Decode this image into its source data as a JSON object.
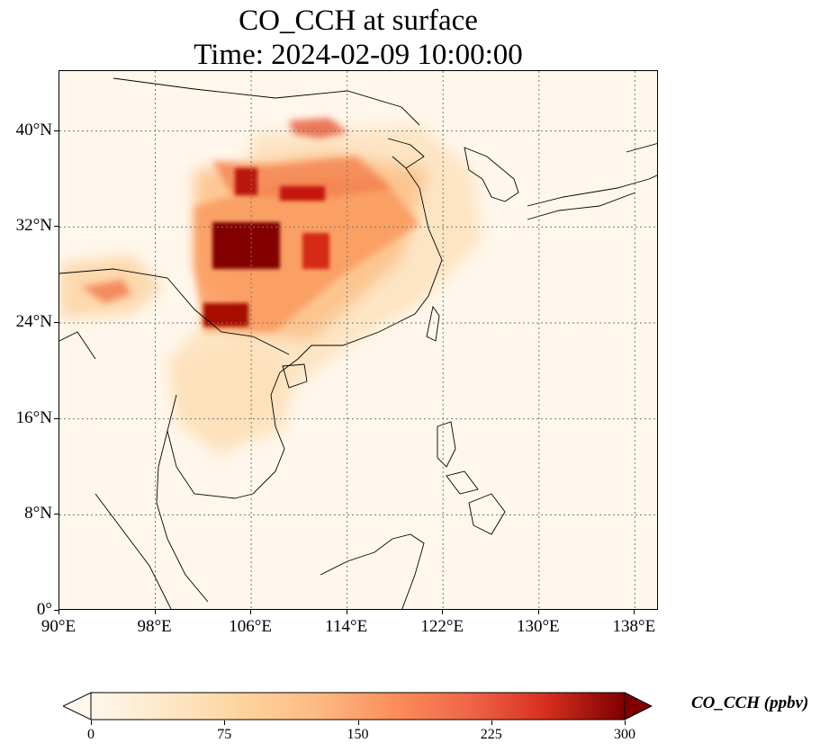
{
  "title": {
    "line1": "CO_CCH at surface",
    "line2": "Time: 2024-02-09 10:00:00"
  },
  "map": {
    "projection": "PlateCarree",
    "lon_range": [
      90,
      140
    ],
    "lat_range": [
      0,
      45
    ],
    "lat_ticks": [
      {
        "value": 0,
        "label": "0°"
      },
      {
        "value": 8,
        "label": "8°N"
      },
      {
        "value": 16,
        "label": "16°N"
      },
      {
        "value": 24,
        "label": "24°N"
      },
      {
        "value": 32,
        "label": "32°N"
      },
      {
        "value": 40,
        "label": "40°N"
      }
    ],
    "lon_ticks": [
      {
        "value": 90,
        "label": "90°E"
      },
      {
        "value": 98,
        "label": "98°E"
      },
      {
        "value": 106,
        "label": "106°E"
      },
      {
        "value": 114,
        "label": "114°E"
      },
      {
        "value": 122,
        "label": "122°E"
      },
      {
        "value": 130,
        "label": "130°E"
      },
      {
        "value": 138,
        "label": "138°E"
      }
    ],
    "gridlines": "dotted"
  },
  "colorbar": {
    "title": "CO_CCH (ppbv)",
    "colormap": "OrRd",
    "range": [
      0,
      300
    ],
    "extend": "both",
    "ticks": [
      "0",
      "75",
      "150",
      "225",
      "300"
    ]
  },
  "colors": {
    "low": "#fff7ec",
    "high": "#7f0000"
  }
}
